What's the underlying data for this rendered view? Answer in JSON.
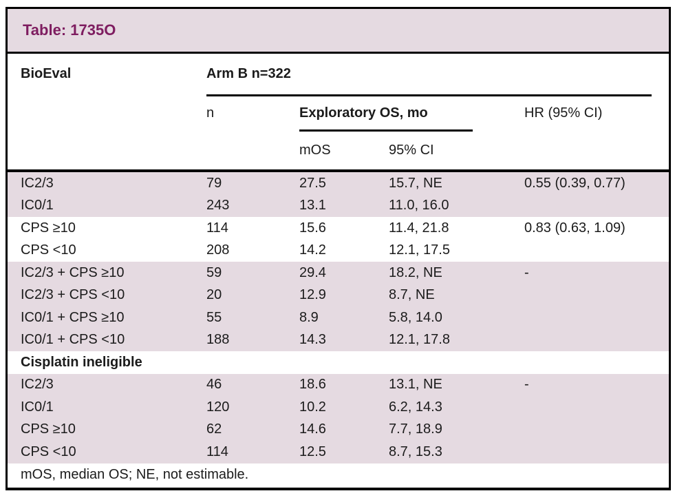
{
  "title": "Table: 1735O",
  "colors": {
    "band_pink": "#E5DAE1",
    "title_text": "#7E1D60",
    "border": "#000000",
    "text": "#1b1b1b"
  },
  "header": {
    "col_bioeval": "BioEval",
    "arm_label": "Arm B n=322",
    "col_n": "n",
    "col_os_group": "Exploratory OS, mo",
    "col_hr": "HR (95% CI)",
    "col_mos": "mOS",
    "col_ci": "95% CI"
  },
  "rows": [
    {
      "label": "IC2/3",
      "n": "79",
      "mos": "27.5",
      "ci": "15.7, NE",
      "hr": "0.55 (0.39, 0.77)",
      "band": "pink",
      "section": false
    },
    {
      "label": "IC0/1",
      "n": "243",
      "mos": "13.1",
      "ci": "11.0, 16.0",
      "hr": "",
      "band": "pink",
      "section": false
    },
    {
      "label": "CPS ≥10",
      "n": "114",
      "mos": "15.6",
      "ci": "11.4, 21.8",
      "hr": "0.83 (0.63, 1.09)",
      "band": "white",
      "section": false
    },
    {
      "label": "CPS <10",
      "n": "208",
      "mos": "14.2",
      "ci": "12.1, 17.5",
      "hr": "",
      "band": "white",
      "section": false
    },
    {
      "label": "IC2/3 + CPS ≥10",
      "n": "59",
      "mos": "29.4",
      "ci": "18.2, NE",
      "hr": "-",
      "band": "pink",
      "section": false
    },
    {
      "label": "IC2/3 + CPS <10",
      "n": "20",
      "mos": "12.9",
      "ci": "8.7, NE",
      "hr": "",
      "band": "pink",
      "section": false
    },
    {
      "label": "IC0/1 + CPS ≥10",
      "n": "55",
      "mos": "8.9",
      "ci": "5.8, 14.0",
      "hr": "",
      "band": "pink",
      "section": false
    },
    {
      "label": "IC0/1 + CPS <10",
      "n": "188",
      "mos": "14.3",
      "ci": "12.1, 17.8",
      "hr": "",
      "band": "pink",
      "section": false
    },
    {
      "label": "Cisplatin ineligible",
      "n": "",
      "mos": "",
      "ci": "",
      "hr": "",
      "band": "white",
      "section": true
    },
    {
      "label": "IC2/3",
      "n": "46",
      "mos": "18.6",
      "ci": "13.1, NE",
      "hr": "-",
      "band": "pink",
      "section": false
    },
    {
      "label": "IC0/1",
      "n": "120",
      "mos": "10.2",
      "ci": "6.2, 14.3",
      "hr": "",
      "band": "pink",
      "section": false
    },
    {
      "label": "CPS ≥10",
      "n": "62",
      "mos": "14.6",
      "ci": "7.7, 18.9",
      "hr": "",
      "band": "pink",
      "section": false
    },
    {
      "label": "CPS <10",
      "n": "114",
      "mos": "12.5",
      "ci": "8.7, 15.3",
      "hr": "",
      "band": "pink",
      "section": false
    }
  ],
  "footnote": "mOS, median OS; NE, not estimable."
}
